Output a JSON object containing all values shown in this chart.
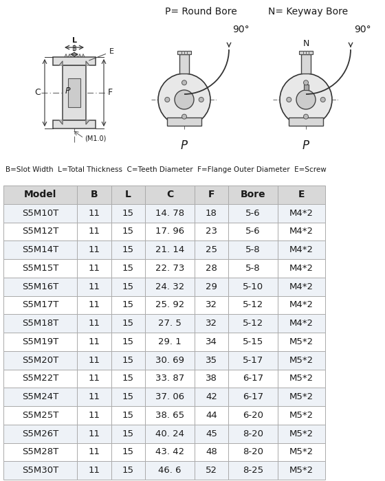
{
  "legend_text": "B=Slot Width  L=Total Thickness  C=Teeth Diameter  F=Flange Outer Diameter  E=Screw",
  "headers": [
    "Model",
    "B",
    "L",
    "C",
    "F",
    "Bore",
    "E"
  ],
  "rows": [
    [
      "S5M10T",
      "11",
      "15",
      "14. 78",
      "18",
      "5-6",
      "M4*2"
    ],
    [
      "S5M12T",
      "11",
      "15",
      "17. 96",
      "23",
      "5-6",
      "M4*2"
    ],
    [
      "S5M14T",
      "11",
      "15",
      "21. 14",
      "25",
      "5-8",
      "M4*2"
    ],
    [
      "S5M15T",
      "11",
      "15",
      "22. 73",
      "28",
      "5-8",
      "M4*2"
    ],
    [
      "S5M16T",
      "11",
      "15",
      "24. 32",
      "29",
      "5-10",
      "M4*2"
    ],
    [
      "S5M17T",
      "11",
      "15",
      "25. 92",
      "32",
      "5-12",
      "M4*2"
    ],
    [
      "S5M18T",
      "11",
      "15",
      "27. 5",
      "32",
      "5-12",
      "M4*2"
    ],
    [
      "S5M19T",
      "11",
      "15",
      "29. 1",
      "34",
      "5-15",
      "M5*2"
    ],
    [
      "S5M20T",
      "11",
      "15",
      "30. 69",
      "35",
      "5-17",
      "M5*2"
    ],
    [
      "S5M22T",
      "11",
      "15",
      "33. 87",
      "38",
      "6-17",
      "M5*2"
    ],
    [
      "S5M24T",
      "11",
      "15",
      "37. 06",
      "42",
      "6-17",
      "M5*2"
    ],
    [
      "S5M25T",
      "11",
      "15",
      "38. 65",
      "44",
      "6-20",
      "M5*2"
    ],
    [
      "S5M26T",
      "11",
      "15",
      "40. 24",
      "45",
      "8-20",
      "M5*2"
    ],
    [
      "S5M28T",
      "11",
      "15",
      "43. 42",
      "48",
      "8-20",
      "M5*2"
    ],
    [
      "S5M30T",
      "11",
      "15",
      "46. 6",
      "52",
      "8-25",
      "M5*2"
    ]
  ],
  "header_bg": "#d8d8d8",
  "row_bg_alt": "#eef2f7",
  "row_bg_white": "#ffffff",
  "border_color": "#aaaaaa",
  "text_color": "#1a1a1a",
  "fig_bg": "#ffffff"
}
